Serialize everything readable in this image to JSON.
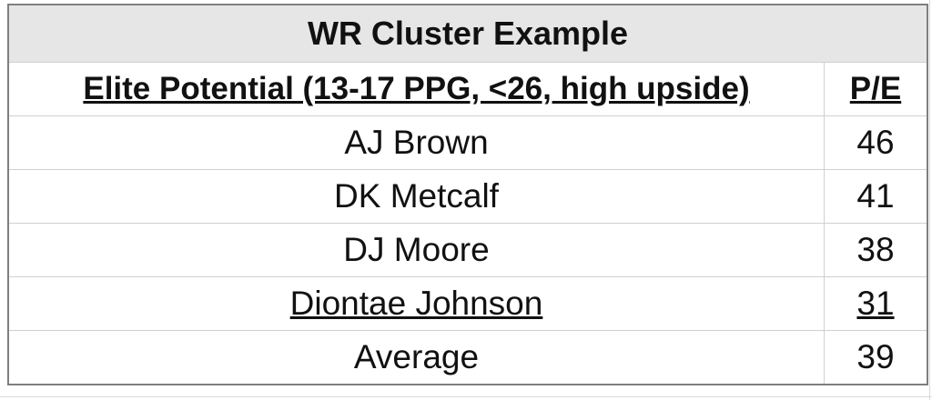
{
  "title": "WR Cluster Example",
  "table": {
    "header": [
      "Elite Potential (13-17 PPG, <26, high upside)",
      "P/E"
    ],
    "rows": [
      [
        "AJ Brown",
        46
      ],
      [
        "DK Metcalf",
        41
      ],
      [
        "DJ Moore",
        38
      ],
      [
        "Diontae Johnson",
        31
      ],
      [
        "Average",
        39
      ]
    ]
  }
}
